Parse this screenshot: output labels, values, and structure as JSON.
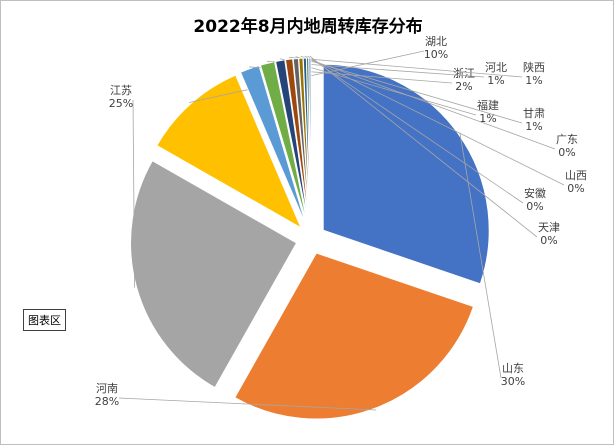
{
  "chart_data": {
    "type": "pie",
    "title": "2022年8月内地周转库存分布",
    "categories": [
      "山东",
      "河南",
      "江苏",
      "湖北",
      "浙江",
      "河北",
      "福建",
      "陕西",
      "甘肃",
      "广东",
      "山西",
      "安徽",
      "天津"
    ],
    "values": [
      30.5,
      28.2,
      25.3,
      10.4,
      1.9,
      1.4,
      0.9,
      0.7,
      0.5,
      0.4,
      0.3,
      0.2,
      0.2
    ],
    "value_labels": [
      "30%",
      "28%",
      "25%",
      "10%",
      "2%",
      "1%",
      "1%",
      "1%",
      "1%",
      "0%",
      "0%",
      "0%",
      "0%"
    ],
    "colors": [
      "#4472c4",
      "#ed7d31",
      "#a5a5a5",
      "#ffc000",
      "#5b9bd5",
      "#70ad47",
      "#264478",
      "#9e480e",
      "#636363",
      "#997300",
      "#255e91",
      "#43682b",
      "#698ed0"
    ],
    "start_angle_deg": 90,
    "direction": "clockwise",
    "exploded": true,
    "legend": "none",
    "data_labels": "category and percentage"
  },
  "plot_area_tag": "图表区"
}
